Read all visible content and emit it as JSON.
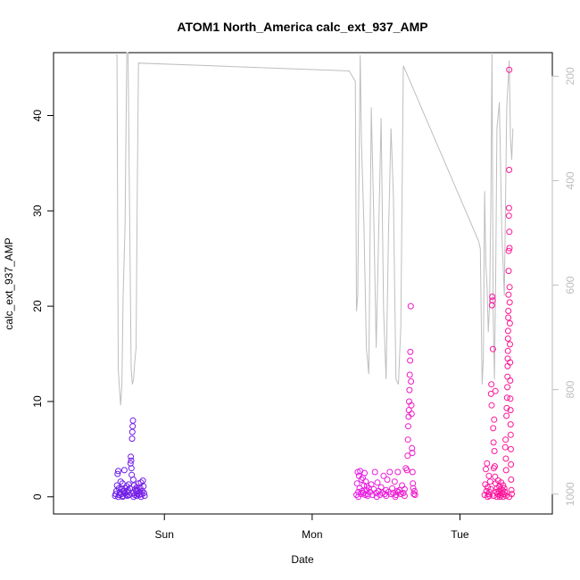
{
  "chart_data": {
    "type": "scatter",
    "title": "ATOM1 North_America calc_ext_937_AMP",
    "xlabel": "Date",
    "ylabel": "calc_ext_937_AMP",
    "x_ticks": [
      {
        "label": "Sun",
        "value": 24
      },
      {
        "label": "Mon",
        "value": 48
      },
      {
        "label": "Tue",
        "value": 72
      }
    ],
    "xlim": [
      6,
      87
    ],
    "ylim": [
      -1.8,
      46.6
    ],
    "y_ticks": [
      0,
      10,
      20,
      30,
      40
    ],
    "y2_ticks": [
      200,
      400,
      600,
      800,
      1000
    ],
    "y2lim": [
      1038,
      155
    ],
    "grid": false,
    "secondary_line_color": "#bebebe",
    "point_color_start": "#6a1ee8",
    "point_color_mid": "#e61ee8",
    "point_color_end": "#ff1493",
    "series": [
      {
        "values": [
          [
            16.0,
            0.1
          ],
          [
            16.1,
            0.3
          ],
          [
            16.2,
            0.6
          ],
          [
            16.3,
            1.2
          ],
          [
            16.4,
            2.4
          ],
          [
            16.5,
            2.7
          ],
          [
            16.6,
            0.9
          ],
          [
            16.7,
            0.2
          ],
          [
            16.8,
            0.5
          ],
          [
            16.9,
            1.6
          ],
          [
            17.0,
            0.3
          ],
          [
            17.1,
            0.8
          ],
          [
            17.2,
            1.4
          ],
          [
            17.3,
            0.1
          ],
          [
            17.4,
            0.6
          ],
          [
            17.5,
            2.8
          ],
          [
            17.6,
            0.4
          ],
          [
            17.7,
            0.9
          ],
          [
            17.8,
            0.2
          ],
          [
            17.9,
            1.1
          ],
          [
            18.0,
            0.5
          ],
          [
            18.1,
            0.7
          ],
          [
            18.2,
            1.3
          ],
          [
            18.3,
            0.2
          ],
          [
            18.4,
            0.9
          ],
          [
            18.5,
            3.5
          ],
          [
            18.55,
            4.2
          ],
          [
            18.6,
            3.8
          ],
          [
            18.65,
            3.0
          ],
          [
            18.7,
            2.3
          ],
          [
            18.75,
            6.1
          ],
          [
            18.8,
            6.8
          ],
          [
            18.85,
            7.4
          ],
          [
            18.9,
            8.0
          ],
          [
            18.95,
            1.8
          ],
          [
            19.0,
            0.4
          ],
          [
            19.1,
            1.2
          ],
          [
            19.2,
            0.2
          ],
          [
            19.3,
            0.8
          ],
          [
            19.4,
            0.6
          ],
          [
            19.5,
            1.0
          ],
          [
            19.6,
            0.3
          ],
          [
            19.7,
            0.7
          ],
          [
            19.8,
            1.4
          ],
          [
            19.9,
            0.2
          ],
          [
            20.0,
            0.5
          ],
          [
            20.1,
            0.9
          ],
          [
            20.2,
            1.5
          ],
          [
            20.3,
            0.3
          ],
          [
            20.4,
            0.6
          ],
          [
            20.5,
            1.7
          ],
          [
            20.6,
            1.1
          ],
          [
            20.7,
            0.4
          ],
          [
            20.8,
            0.1
          ],
          [
            17.2,
            0.0
          ],
          [
            18.0,
            0.1
          ],
          [
            19.0,
            0.0
          ],
          [
            19.5,
            0.1
          ],
          [
            16.5,
            0.0
          ],
          [
            20.2,
            0.0
          ]
        ]
      },
      {
        "values": [
          [
            55.2,
            0.2
          ],
          [
            55.3,
            1.4
          ],
          [
            55.4,
            2.6
          ],
          [
            55.5,
            0.5
          ],
          [
            55.6,
            2.2
          ],
          [
            55.7,
            0.9
          ],
          [
            55.8,
            2.7
          ],
          [
            55.9,
            0.3
          ],
          [
            56.0,
            1.8
          ],
          [
            56.1,
            0.6
          ],
          [
            56.2,
            2.0
          ],
          [
            56.3,
            0.4
          ],
          [
            56.4,
            1.2
          ],
          [
            56.5,
            2.5
          ],
          [
            56.6,
            0.2
          ],
          [
            56.7,
            1.6
          ],
          [
            56.8,
            0.7
          ],
          [
            56.9,
            1.1
          ],
          [
            57.0,
            0.3
          ],
          [
            57.2,
            0.9
          ],
          [
            57.4,
            0.5
          ],
          [
            57.6,
            1.3
          ],
          [
            57.8,
            0.2
          ],
          [
            58.0,
            0.8
          ],
          [
            58.2,
            2.6
          ],
          [
            58.4,
            0.4
          ],
          [
            58.6,
            1.5
          ],
          [
            58.8,
            0.6
          ],
          [
            59.0,
            0.2
          ],
          [
            59.2,
            1.0
          ],
          [
            59.4,
            0.4
          ],
          [
            59.6,
            2.2
          ],
          [
            59.8,
            0.3
          ],
          [
            60.0,
            0.7
          ],
          [
            60.2,
            1.8
          ],
          [
            60.4,
            0.5
          ],
          [
            60.6,
            2.6
          ],
          [
            60.8,
            0.3
          ],
          [
            61.0,
            0.9
          ],
          [
            61.2,
            0.4
          ],
          [
            61.4,
            1.6
          ],
          [
            61.6,
            0.2
          ],
          [
            61.8,
            0.6
          ],
          [
            61.9,
            2.6
          ],
          [
            62.0,
            0.5
          ],
          [
            62.2,
            0.7
          ],
          [
            62.4,
            0.3
          ],
          [
            62.6,
            1.2
          ],
          [
            62.8,
            0.4
          ],
          [
            63.0,
            0.8
          ],
          [
            63.2,
            3.0
          ],
          [
            63.4,
            2.8
          ],
          [
            63.5,
            4.3
          ],
          [
            63.55,
            6.0
          ],
          [
            63.6,
            7.4
          ],
          [
            63.65,
            8.4
          ],
          [
            63.7,
            9.1
          ],
          [
            63.75,
            10.0
          ],
          [
            63.8,
            11.2
          ],
          [
            63.85,
            12.8
          ],
          [
            63.9,
            14.3
          ],
          [
            63.95,
            15.2
          ],
          [
            64.0,
            20.0
          ],
          [
            64.05,
            12.1
          ],
          [
            64.1,
            9.6
          ],
          [
            64.15,
            8.7
          ],
          [
            64.2,
            5.1
          ],
          [
            64.25,
            4.6
          ],
          [
            64.3,
            2.6
          ],
          [
            64.35,
            1.4
          ],
          [
            64.4,
            0.9
          ],
          [
            64.5,
            0.3
          ],
          [
            64.6,
            0.6
          ],
          [
            64.7,
            0.2
          ],
          [
            55.5,
            0.0
          ],
          [
            57.0,
            0.1
          ],
          [
            58.5,
            0.0
          ],
          [
            60.0,
            0.1
          ],
          [
            61.5,
            0.0
          ],
          [
            63.0,
            0.1
          ]
        ]
      },
      {
        "values": [
          [
            76.0,
            0.2
          ],
          [
            76.1,
            1.3
          ],
          [
            76.2,
            2.9
          ],
          [
            76.3,
            0.6
          ],
          [
            76.4,
            3.5
          ],
          [
            76.5,
            1.0
          ],
          [
            76.6,
            0.3
          ],
          [
            76.7,
            2.2
          ],
          [
            76.8,
            0.5
          ],
          [
            76.9,
            1.6
          ],
          [
            77.0,
            0.8
          ],
          [
            77.05,
            10.8
          ],
          [
            77.1,
            11.8
          ],
          [
            77.15,
            9.6
          ],
          [
            77.2,
            20.1
          ],
          [
            77.25,
            21.0
          ],
          [
            77.3,
            20.6
          ],
          [
            77.35,
            15.5
          ],
          [
            77.4,
            7.2
          ],
          [
            77.45,
            5.7
          ],
          [
            77.5,
            3.0
          ],
          [
            77.55,
            8.1
          ],
          [
            77.6,
            4.8
          ],
          [
            77.65,
            3.2
          ],
          [
            77.7,
            2.1
          ],
          [
            77.75,
            11.1
          ],
          [
            77.8,
            1.4
          ],
          [
            77.9,
            0.5
          ],
          [
            78.0,
            0.9
          ],
          [
            78.1,
            0.3
          ],
          [
            78.2,
            1.7
          ],
          [
            78.3,
            0.6
          ],
          [
            78.4,
            1.1
          ],
          [
            78.5,
            0.2
          ],
          [
            78.6,
            0.8
          ],
          [
            78.7,
            1.5
          ],
          [
            78.8,
            0.4
          ],
          [
            78.9,
            0.7
          ],
          [
            79.0,
            1.2
          ],
          [
            79.1,
            0.3
          ],
          [
            79.2,
            0.9
          ],
          [
            79.3,
            0.5
          ],
          [
            79.35,
            5.2
          ],
          [
            79.4,
            6.0
          ],
          [
            79.45,
            4.0
          ],
          [
            79.5,
            2.8
          ],
          [
            79.55,
            8.5
          ],
          [
            79.6,
            9.3
          ],
          [
            79.65,
            10.4
          ],
          [
            79.7,
            11.5
          ],
          [
            79.72,
            12.6
          ],
          [
            79.74,
            13.7
          ],
          [
            79.76,
            14.5
          ],
          [
            79.78,
            15.3
          ],
          [
            79.8,
            16.6
          ],
          [
            79.82,
            17.4
          ],
          [
            79.84,
            18.8
          ],
          [
            79.86,
            19.5
          ],
          [
            79.88,
            21.2
          ],
          [
            79.9,
            23.7
          ],
          [
            79.92,
            25.8
          ],
          [
            79.94,
            29.5
          ],
          [
            79.96,
            30.3
          ],
          [
            79.98,
            34.3
          ],
          [
            80.0,
            44.8
          ],
          [
            80.02,
            27.8
          ],
          [
            80.04,
            26.1
          ],
          [
            80.06,
            22.0
          ],
          [
            80.08,
            20.4
          ],
          [
            80.1,
            18.2
          ],
          [
            80.12,
            16.0
          ],
          [
            80.14,
            14.1
          ],
          [
            80.16,
            12.2
          ],
          [
            80.18,
            10.3
          ],
          [
            80.2,
            9.1
          ],
          [
            80.22,
            7.6
          ],
          [
            80.24,
            6.5
          ],
          [
            80.26,
            5.0
          ],
          [
            80.28,
            3.4
          ],
          [
            80.3,
            1.8
          ],
          [
            80.35,
            0.7
          ],
          [
            80.4,
            0.3
          ],
          [
            76.5,
            0.0
          ],
          [
            77.5,
            0.1
          ],
          [
            78.5,
            0.0
          ],
          [
            79.5,
            0.1
          ],
          [
            80.0,
            0.0
          ],
          [
            76.8,
            0.1
          ],
          [
            78.0,
            0.0
          ],
          [
            79.0,
            0.0
          ]
        ]
      },
      {
        "values": [
          [
            16.1,
            160
          ],
          [
            16.3,
            160
          ],
          [
            16.5,
            760
          ],
          [
            16.7,
            795
          ],
          [
            16.9,
            830
          ],
          [
            17.1,
            790
          ],
          [
            17.3,
            620
          ],
          [
            17.6,
            490
          ],
          [
            17.9,
            155
          ],
          [
            18.1,
            155
          ],
          [
            18.3,
            400
          ],
          [
            18.6,
            760
          ],
          [
            18.8,
            790
          ],
          [
            19.0,
            780
          ],
          [
            19.2,
            745
          ],
          [
            19.4,
            720
          ],
          [
            19.6,
            410
          ],
          [
            19.8,
            175
          ],
          [
            54.0,
            190
          ],
          [
            54.5,
            200
          ],
          [
            55.0,
            210
          ],
          [
            55.2,
            650
          ],
          [
            55.4,
            620
          ],
          [
            55.6,
            390
          ],
          [
            55.8,
            160
          ],
          [
            56.0,
            330
          ],
          [
            56.4,
            480
          ],
          [
            56.8,
            720
          ],
          [
            57.2,
            770
          ],
          [
            57.6,
            260
          ],
          [
            58.0,
            470
          ],
          [
            58.4,
            720
          ],
          [
            58.8,
            500
          ],
          [
            59.2,
            280
          ],
          [
            59.6,
            650
          ],
          [
            60.0,
            780
          ],
          [
            60.4,
            500
          ],
          [
            60.8,
            300
          ],
          [
            61.2,
            430
          ],
          [
            61.6,
            780
          ],
          [
            62.0,
            790
          ],
          [
            62.4,
            680
          ],
          [
            62.8,
            180
          ],
          [
            75.0,
            515
          ],
          [
            75.3,
            530
          ],
          [
            75.6,
            790
          ],
          [
            75.8,
            740
          ],
          [
            76.0,
            420
          ],
          [
            76.2,
            560
          ],
          [
            76.4,
            600
          ],
          [
            76.6,
            690
          ],
          [
            76.8,
            640
          ],
          [
            77.0,
            460
          ],
          [
            77.2,
            155
          ],
          [
            77.4,
            650
          ],
          [
            77.6,
            780
          ],
          [
            77.8,
            590
          ],
          [
            78.0,
            300
          ],
          [
            78.4,
            250
          ],
          [
            78.8,
            500
          ],
          [
            79.2,
            620
          ],
          [
            79.6,
            260
          ],
          [
            80.0,
            170
          ],
          [
            80.2,
            320
          ],
          [
            80.4,
            360
          ],
          [
            80.6,
            300
          ]
        ]
      }
    ]
  }
}
